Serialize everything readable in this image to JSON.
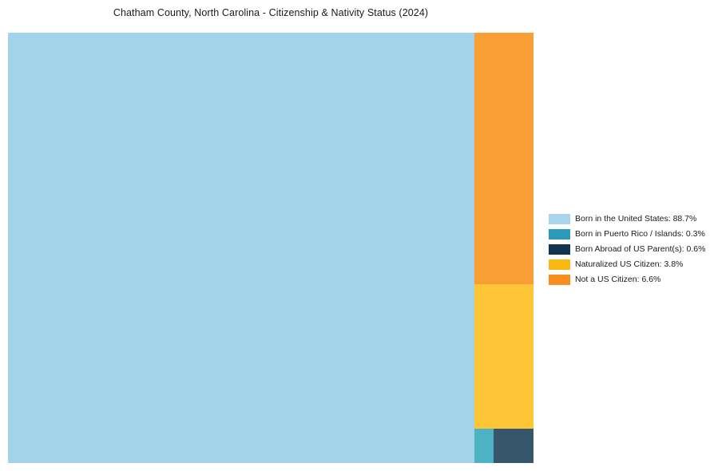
{
  "chart_data": {
    "type": "treemap",
    "title": "Chatham County, North Carolina - Citizenship & Nativity Status (2024)",
    "legend_position": "right",
    "units": "percent",
    "total_pct": 100,
    "items": [
      {
        "label": "Born in the United States",
        "value_pct": 88.7,
        "legend_label": "Born in the United States: 88.7%",
        "color": "#A3D3EA",
        "legend_color": "#A9D5EB",
        "rect": {
          "x": 0,
          "y": 0,
          "w": 88.7,
          "h": 100
        }
      },
      {
        "label": "Born in Puerto Rico / Islands",
        "value_pct": 0.3,
        "legend_label": "Born in Puerto Rico / Islands: 0.3%",
        "color": "#4CB2C4",
        "legend_color": "#2B9AB8",
        "rect": {
          "x": 88.7,
          "y": 92.04,
          "w": 3.77,
          "h": 7.96
        }
      },
      {
        "label": "Born Abroad of US Parent(s)",
        "value_pct": 0.6,
        "legend_label": "Born Abroad of US Parent(s): 0.6%",
        "color": "#35566B",
        "legend_color": "#12344E",
        "rect": {
          "x": 92.47,
          "y": 92.04,
          "w": 7.53,
          "h": 7.96
        }
      },
      {
        "label": "Naturalized US Citizen",
        "value_pct": 3.8,
        "legend_label": "Naturalized US Citizen: 3.8%",
        "color": "#FEC637",
        "legend_color": "#FBB811",
        "rect": {
          "x": 88.7,
          "y": 58.41,
          "w": 11.3,
          "h": 33.63
        }
      },
      {
        "label": "Not a US Citizen",
        "value_pct": 6.6,
        "legend_label": "Not a US Citizen: 6.6%",
        "color": "#F99E35",
        "legend_color": "#F78D1E",
        "rect": {
          "x": 88.7,
          "y": 0,
          "w": 11.3,
          "h": 58.41
        }
      }
    ]
  }
}
